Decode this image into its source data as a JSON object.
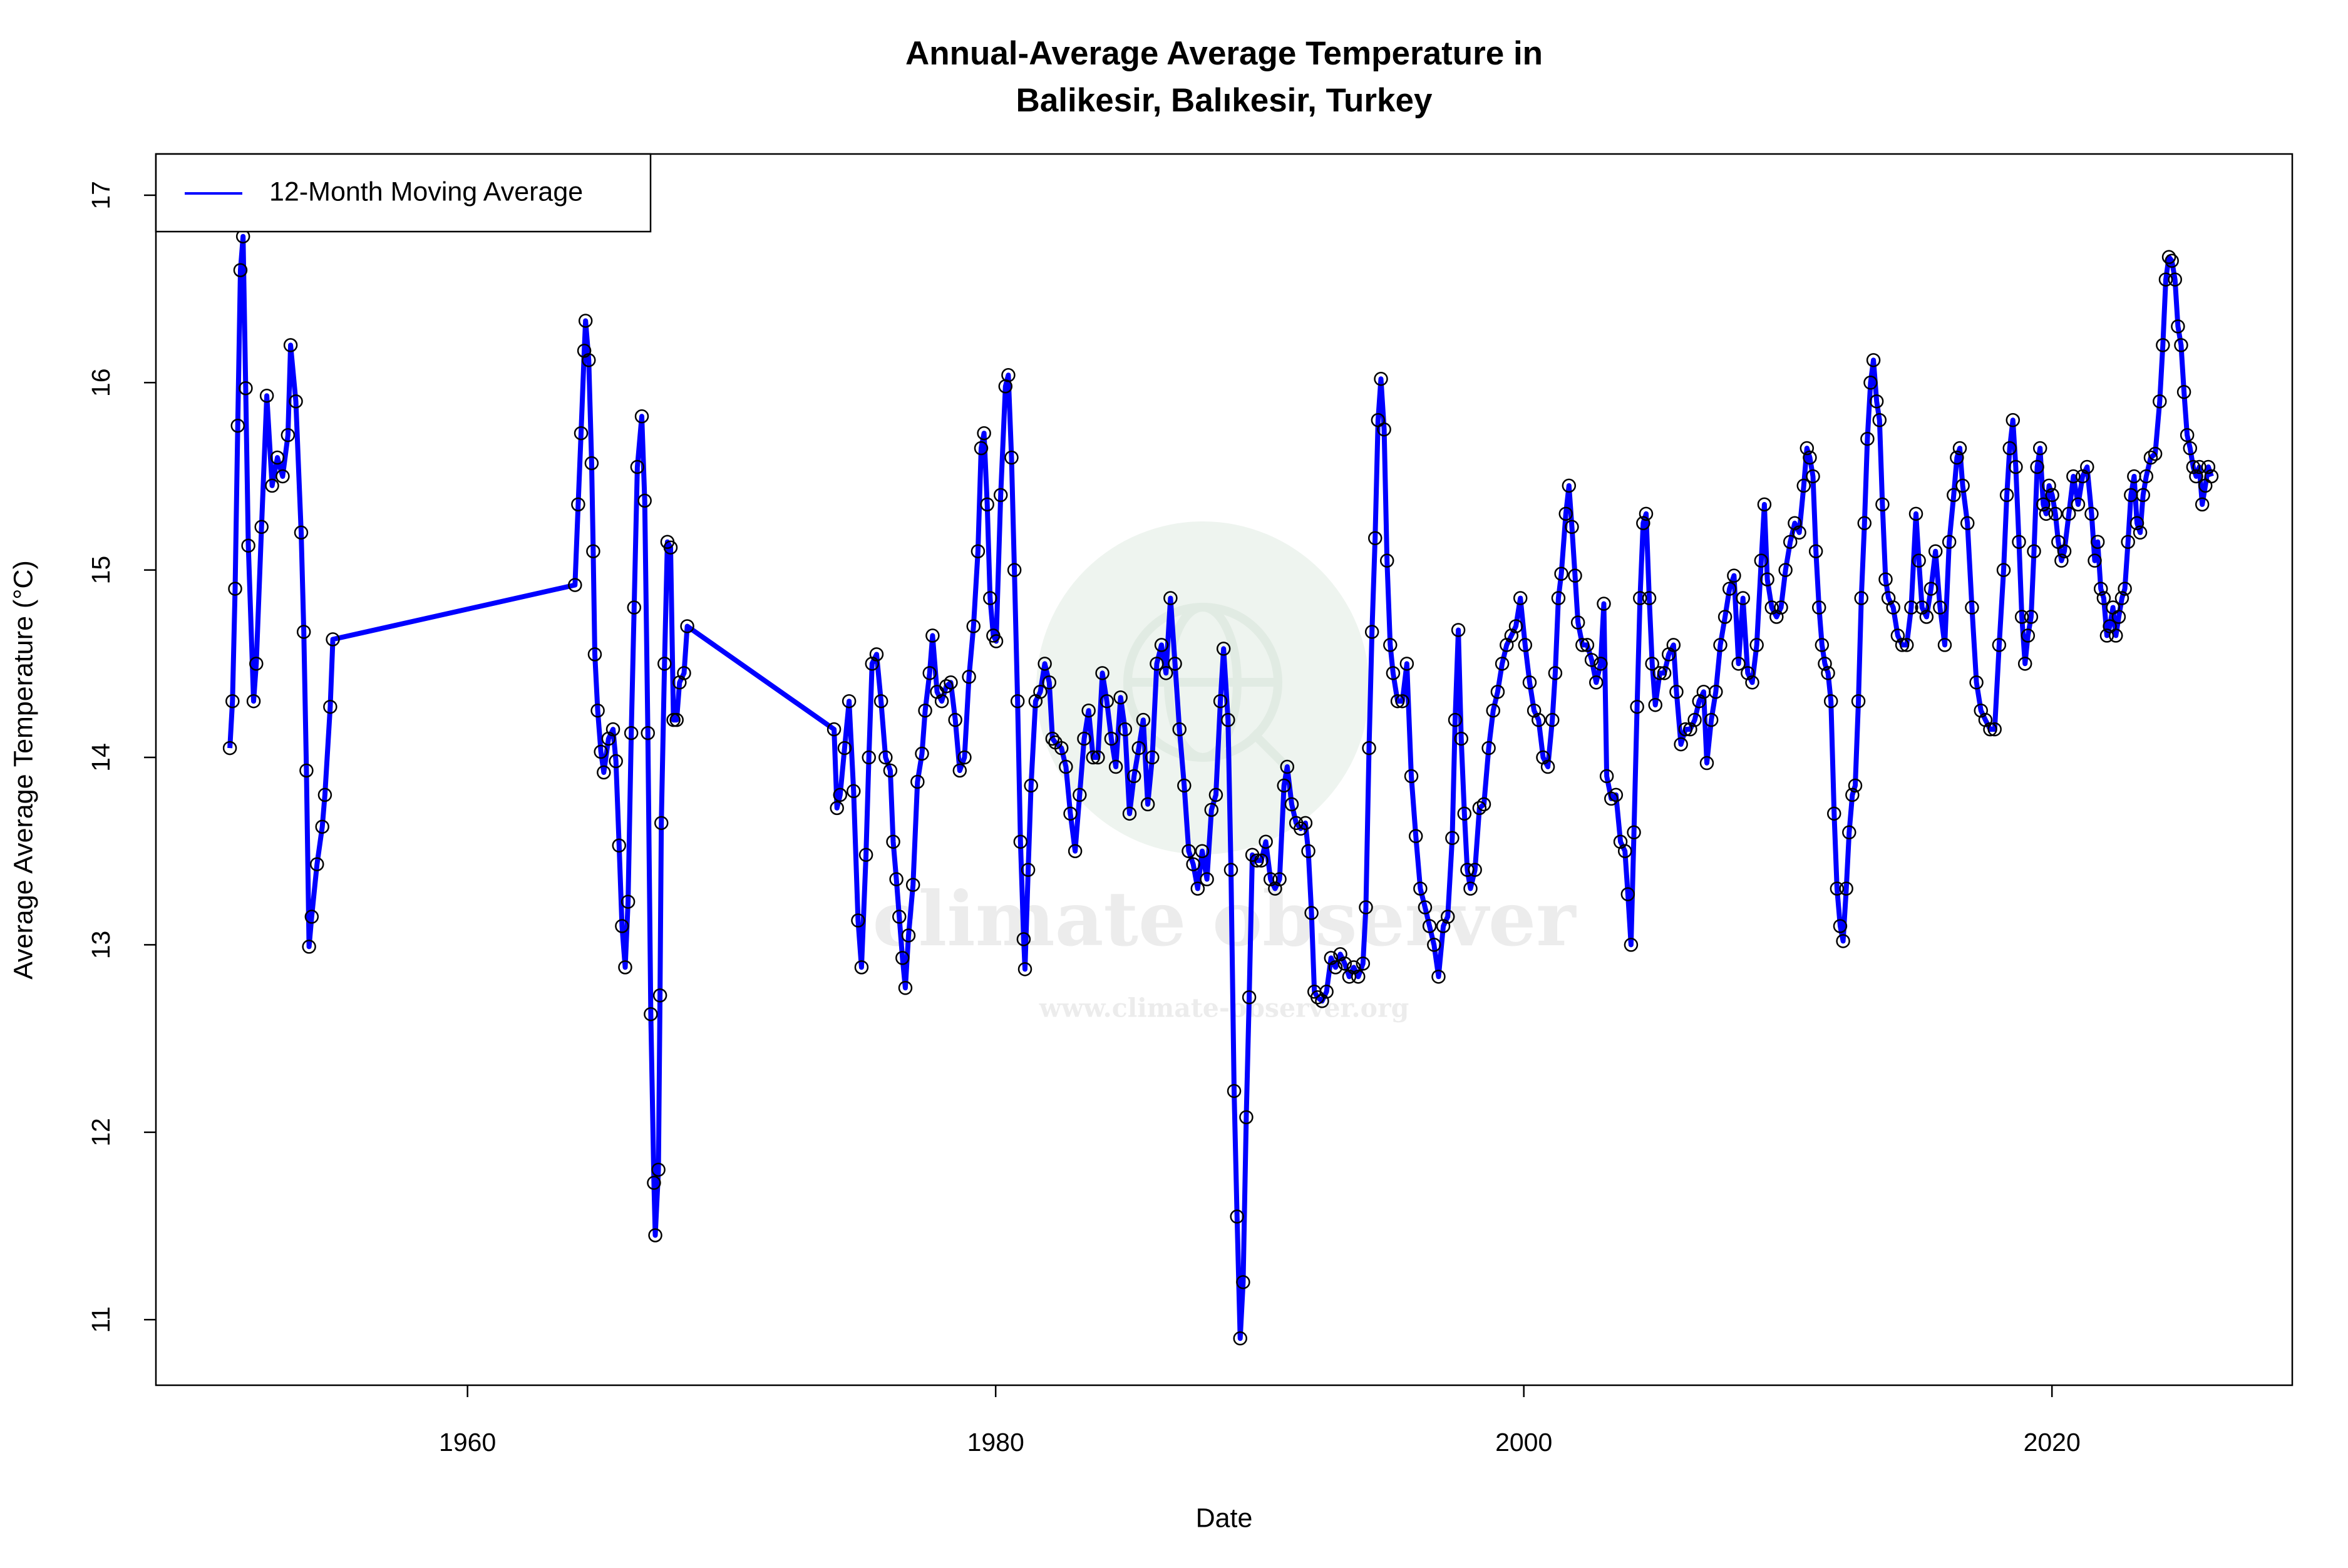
{
  "chart_data": {
    "type": "line",
    "title": [
      "Annual-Average Average Temperature in",
      "Balikesir, Balıkesir, Turkey"
    ],
    "x_label": "Date",
    "y_label": "Average Average Temperature (°C)",
    "watermark": [
      "climate observer",
      "www.climate-observer.org"
    ],
    "legend": "topleft",
    "marker_color": "#000000",
    "xlim": [
      1948.2,
      2029.1
    ],
    "xticks": [
      1960,
      1980,
      2000,
      2020
    ],
    "ylim": [
      10.65,
      17.22
    ],
    "yticks": [
      11,
      12,
      13,
      14,
      15,
      16,
      17
    ],
    "x": [
      1951.0,
      1951.1,
      1951.2,
      1951.3,
      1951.4,
      1951.5,
      1951.6,
      1951.7,
      1951.9,
      1952.0,
      1952.2,
      1952.4,
      1952.6,
      1952.8,
      1953.0,
      1953.2,
      1953.3,
      1953.5,
      1953.7,
      1953.8,
      1953.9,
      1954.0,
      1954.1,
      1954.3,
      1954.5,
      1954.6,
      1954.8,
      1954.9,
      1964.07,
      1964.19,
      1964.3,
      1964.42,
      1964.47,
      1964.59,
      1964.7,
      1964.76,
      1964.82,
      1964.93,
      1965.05,
      1965.16,
      1965.34,
      1965.51,
      1965.62,
      1965.74,
      1965.85,
      1965.97,
      1966.08,
      1966.2,
      1966.31,
      1966.43,
      1966.6,
      1966.71,
      1966.83,
      1966.94,
      1967.06,
      1967.11,
      1967.23,
      1967.29,
      1967.34,
      1967.46,
      1967.57,
      1967.69,
      1967.8,
      1967.92,
      1968.03,
      1968.2,
      1968.32,
      1973.88,
      1973.99,
      1974.11,
      1974.28,
      1974.45,
      1974.62,
      1974.79,
      1974.92,
      1975.09,
      1975.2,
      1975.32,
      1975.49,
      1975.66,
      1975.83,
      1976.01,
      1976.12,
      1976.24,
      1976.35,
      1976.47,
      1976.58,
      1976.7,
      1976.87,
      1977.04,
      1977.21,
      1977.33,
      1977.5,
      1977.61,
      1977.78,
      1977.96,
      1978.13,
      1978.3,
      1978.47,
      1978.64,
      1978.82,
      1978.99,
      1979.16,
      1979.33,
      1979.45,
      1979.56,
      1979.68,
      1979.79,
      1979.91,
      1980.02,
      1980.19,
      1980.37,
      1980.48,
      1980.6,
      1980.71,
      1980.83,
      1980.94,
      1981.06,
      1981.11,
      1981.23,
      1981.34,
      1981.51,
      1981.69,
      1981.86,
      1982.03,
      1982.15,
      1982.26,
      1982.49,
      1982.66,
      1982.83,
      1983.01,
      1983.18,
      1983.35,
      1983.52,
      1983.69,
      1983.87,
      1984.04,
      1984.21,
      1984.38,
      1984.55,
      1984.73,
      1984.9,
      1985.07,
      1985.24,
      1985.42,
      1985.59,
      1985.76,
      1985.93,
      1986.1,
      1986.28,
      1986.45,
      1986.62,
      1986.79,
      1986.96,
      1987.14,
      1987.31,
      1987.48,
      1987.65,
      1987.82,
      1988.0,
      1988.17,
      1988.34,
      1988.51,
      1988.63,
      1988.8,
      1988.91,
      1989.03,
      1989.14,
      1989.26,
      1989.37,
      1989.49,
      1989.6,
      1989.72,
      1989.89,
      1990.06,
      1990.23,
      1990.41,
      1990.58,
      1990.75,
      1990.92,
      1991.04,
      1991.21,
      1991.38,
      1991.55,
      1991.73,
      1991.84,
      1991.96,
      1992.07,
      1992.19,
      1992.36,
      1992.53,
      1992.7,
      1992.87,
      1993.05,
      1993.22,
      1993.39,
      1993.56,
      1993.73,
      1993.91,
      1994.02,
      1994.14,
      1994.25,
      1994.37,
      1994.48,
      1994.59,
      1994.71,
      1994.82,
      1994.94,
      1995.05,
      1995.22,
      1995.4,
      1995.57,
      1995.74,
      1995.91,
      1996.08,
      1996.26,
      1996.43,
      1996.6,
      1996.77,
      1996.95,
      1997.12,
      1997.29,
      1997.4,
      1997.52,
      1997.63,
      1997.75,
      1997.86,
      1997.98,
      1998.15,
      1998.32,
      1998.49,
      1998.67,
      1998.84,
      1999.01,
      1999.18,
      1999.35,
      1999.53,
      1999.7,
      1999.87,
      2000.05,
      2000.22,
      2000.39,
      2000.56,
      2000.73,
      2000.91,
      2001.08,
      2001.19,
      2001.31,
      2001.42,
      2001.59,
      2001.71,
      2001.82,
      2001.94,
      2002.05,
      2002.22,
      2002.4,
      2002.57,
      2002.74,
      2002.91,
      2003.03,
      2003.14,
      2003.31,
      2003.49,
      2003.66,
      2003.83,
      2003.94,
      2004.06,
      2004.17,
      2004.29,
      2004.4,
      2004.52,
      2004.63,
      2004.75,
      2004.86,
      2004.98,
      2005.15,
      2005.32,
      2005.49,
      2005.67,
      2005.78,
      2005.95,
      2006.12,
      2006.3,
      2006.47,
      2006.64,
      2006.81,
      2006.93,
      2007.1,
      2007.27,
      2007.44,
      2007.62,
      2007.79,
      2007.96,
      2008.13,
      2008.3,
      2008.48,
      2008.65,
      2008.82,
      2008.99,
      2009.11,
      2009.22,
      2009.39,
      2009.57,
      2009.74,
      2009.91,
      2010.09,
      2010.26,
      2010.43,
      2010.6,
      2010.72,
      2010.83,
      2010.95,
      2011.06,
      2011.18,
      2011.29,
      2011.4,
      2011.52,
      2011.63,
      2011.75,
      2011.86,
      2011.98,
      2012.09,
      2012.21,
      2012.32,
      2012.44,
      2012.55,
      2012.67,
      2012.78,
      2012.9,
      2013.01,
      2013.13,
      2013.24,
      2013.36,
      2013.47,
      2013.58,
      2013.7,
      2013.81,
      2013.99,
      2014.16,
      2014.33,
      2014.5,
      2014.67,
      2014.85,
      2014.96,
      2015.08,
      2015.25,
      2015.42,
      2015.59,
      2015.76,
      2015.94,
      2016.11,
      2016.28,
      2016.4,
      2016.51,
      2016.62,
      2016.8,
      2016.97,
      2017.14,
      2017.31,
      2017.48,
      2017.66,
      2017.83,
      2018.0,
      2018.17,
      2018.29,
      2018.4,
      2018.52,
      2018.63,
      2018.75,
      2018.86,
      2018.98,
      2019.09,
      2019.21,
      2019.32,
      2019.44,
      2019.55,
      2019.67,
      2019.78,
      2019.89,
      2020.01,
      2020.13,
      2020.24,
      2020.36,
      2020.47,
      2020.64,
      2020.81,
      2020.99,
      2021.16,
      2021.33,
      2021.5,
      2021.62,
      2021.73,
      2021.85,
      2021.96,
      2022.08,
      2022.19,
      2022.31,
      2022.42,
      2022.53,
      2022.65,
      2022.76,
      2022.88,
      2022.99,
      2023.11,
      2023.22,
      2023.34,
      2023.45,
      2023.57,
      2023.74,
      2023.91,
      2024.08,
      2024.2,
      2024.31,
      2024.43,
      2024.54,
      2024.66,
      2024.77,
      2024.89,
      2025.0,
      2025.12,
      2025.23,
      2025.35,
      2025.46,
      2025.58,
      2025.69,
      2025.81,
      2025.92,
      2026.04
    ],
    "series": [
      {
        "name": "12-Month Moving Average",
        "color": "#0000ff",
        "values": [
          14.05,
          14.3,
          14.9,
          15.77,
          16.6,
          16.78,
          15.97,
          15.13,
          14.3,
          14.5,
          15.23,
          15.93,
          15.45,
          15.6,
          15.5,
          15.72,
          16.2,
          15.9,
          15.2,
          14.67,
          13.93,
          12.99,
          13.15,
          13.43,
          13.63,
          13.8,
          14.27,
          14.63,
          14.92,
          15.35,
          15.73,
          16.17,
          16.33,
          16.12,
          15.57,
          15.1,
          14.55,
          14.25,
          14.03,
          13.92,
          14.1,
          14.15,
          13.98,
          13.53,
          13.1,
          12.88,
          13.23,
          14.13,
          14.8,
          15.55,
          15.82,
          15.37,
          14.13,
          12.63,
          11.73,
          11.45,
          11.8,
          12.73,
          13.65,
          14.5,
          15.15,
          15.12,
          14.2,
          14.2,
          14.4,
          14.45,
          14.7,
          14.15,
          13.73,
          13.8,
          14.05,
          14.3,
          13.82,
          13.13,
          12.88,
          13.48,
          14.0,
          14.5,
          14.55,
          14.3,
          14.0,
          13.93,
          13.55,
          13.35,
          13.15,
          12.93,
          12.77,
          13.05,
          13.32,
          13.87,
          14.02,
          14.25,
          14.45,
          14.65,
          14.35,
          14.3,
          14.38,
          14.4,
          14.2,
          13.93,
          14.0,
          14.43,
          14.7,
          15.1,
          15.65,
          15.73,
          15.35,
          14.85,
          14.65,
          14.62,
          15.4,
          15.98,
          16.04,
          15.6,
          15.0,
          14.3,
          13.55,
          13.03,
          12.87,
          13.4,
          13.85,
          14.3,
          14.35,
          14.5,
          14.4,
          14.1,
          14.08,
          14.05,
          13.95,
          13.7,
          13.5,
          13.8,
          14.1,
          14.25,
          14.0,
          14.0,
          14.45,
          14.3,
          14.1,
          13.95,
          14.32,
          14.15,
          13.7,
          13.9,
          14.05,
          14.2,
          13.75,
          14.0,
          14.5,
          14.6,
          14.45,
          14.85,
          14.5,
          14.15,
          13.85,
          13.5,
          13.43,
          13.3,
          13.5,
          13.35,
          13.72,
          13.8,
          14.3,
          14.58,
          14.2,
          13.4,
          12.22,
          11.55,
          10.9,
          11.2,
          12.08,
          12.72,
          13.48,
          13.45,
          13.45,
          13.55,
          13.35,
          13.3,
          13.35,
          13.85,
          13.95,
          13.75,
          13.65,
          13.62,
          13.65,
          13.5,
          13.17,
          12.75,
          12.72,
          12.7,
          12.75,
          12.93,
          12.88,
          12.95,
          12.9,
          12.83,
          12.88,
          12.83,
          12.9,
          13.2,
          14.05,
          14.67,
          15.17,
          15.8,
          16.02,
          15.75,
          15.05,
          14.6,
          14.45,
          14.3,
          14.3,
          14.5,
          13.9,
          13.58,
          13.3,
          13.2,
          13.1,
          13.0,
          12.83,
          13.1,
          13.15,
          13.57,
          14.2,
          14.68,
          14.1,
          13.7,
          13.4,
          13.3,
          13.4,
          13.73,
          13.75,
          14.05,
          14.25,
          14.35,
          14.5,
          14.6,
          14.65,
          14.7,
          14.85,
          14.6,
          14.4,
          14.25,
          14.2,
          14.0,
          13.95,
          14.2,
          14.45,
          14.85,
          14.98,
          15.3,
          15.45,
          15.23,
          14.97,
          14.72,
          14.6,
          14.6,
          14.52,
          14.4,
          14.5,
          14.82,
          13.9,
          13.78,
          13.8,
          13.55,
          13.5,
          13.27,
          13.0,
          13.6,
          14.27,
          14.85,
          15.25,
          15.3,
          14.85,
          14.5,
          14.28,
          14.45,
          14.45,
          14.55,
          14.6,
          14.35,
          14.07,
          14.15,
          14.15,
          14.2,
          14.3,
          14.35,
          13.97,
          14.2,
          14.35,
          14.6,
          14.75,
          14.9,
          14.97,
          14.5,
          14.85,
          14.45,
          14.4,
          14.6,
          15.05,
          15.35,
          14.95,
          14.8,
          14.75,
          14.8,
          15.0,
          15.15,
          15.25,
          15.2,
          15.45,
          15.65,
          15.6,
          15.5,
          15.1,
          14.8,
          14.6,
          14.5,
          14.45,
          14.3,
          13.7,
          13.3,
          13.1,
          13.02,
          13.3,
          13.6,
          13.8,
          13.85,
          14.3,
          14.85,
          15.25,
          15.7,
          16.0,
          16.12,
          15.9,
          15.8,
          15.35,
          14.95,
          14.85,
          14.8,
          14.65,
          14.6,
          14.6,
          14.8,
          15.3,
          15.05,
          14.8,
          14.75,
          14.9,
          15.1,
          14.8,
          14.6,
          15.15,
          15.4,
          15.6,
          15.65,
          15.45,
          15.25,
          14.8,
          14.4,
          14.25,
          14.2,
          14.15,
          14.15,
          14.6,
          15.0,
          15.4,
          15.65,
          15.8,
          15.55,
          15.15,
          14.75,
          14.5,
          14.65,
          14.75,
          15.1,
          15.55,
          15.65,
          15.35,
          15.3,
          15.45,
          15.4,
          15.3,
          15.15,
          15.05,
          15.1,
          15.3,
          15.5,
          15.35,
          15.5,
          15.55,
          15.3,
          15.05,
          15.15,
          14.9,
          14.85,
          14.65,
          14.7,
          14.8,
          14.65,
          14.75,
          14.85,
          14.9,
          15.15,
          15.4,
          15.5,
          15.25,
          15.2,
          15.4,
          15.5,
          15.6,
          15.62,
          15.9,
          16.2,
          16.55,
          16.67,
          16.65,
          16.55,
          16.3,
          16.2,
          15.95,
          15.72,
          15.65,
          15.55,
          15.5,
          15.55,
          15.35,
          15.45,
          15.55,
          15.5
        ]
      }
    ]
  }
}
